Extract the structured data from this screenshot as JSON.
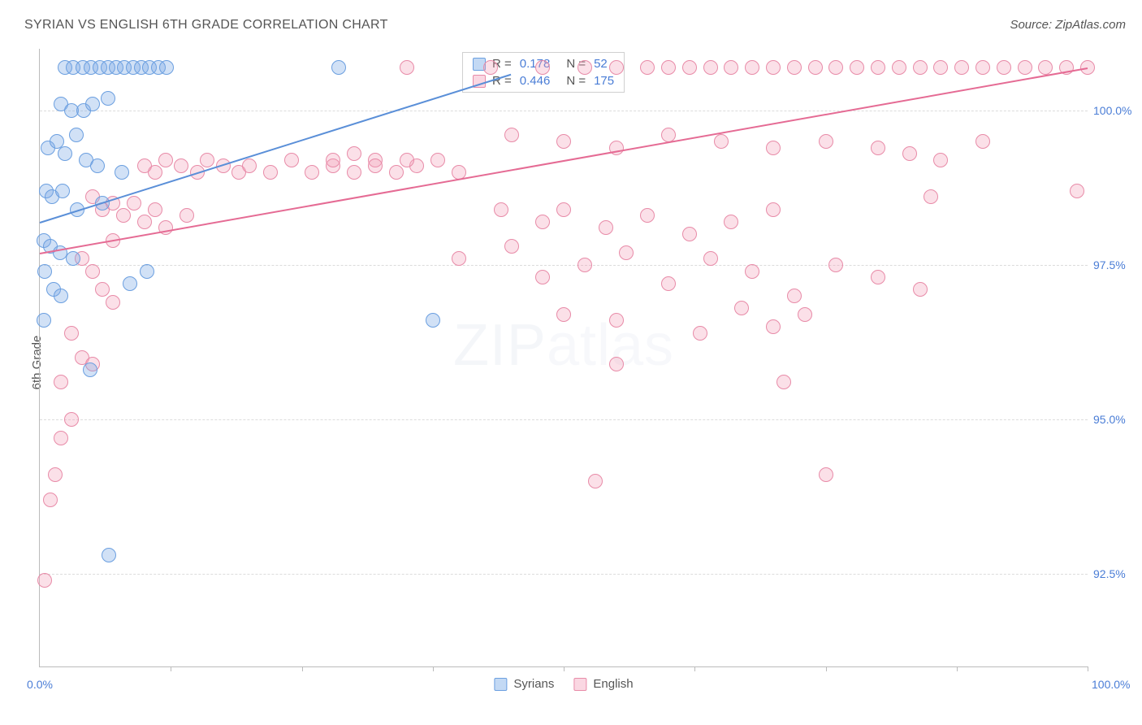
{
  "title": "SYRIAN VS ENGLISH 6TH GRADE CORRELATION CHART",
  "source": "Source: ZipAtlas.com",
  "ylabel": "6th Grade",
  "watermark_zip": "ZIP",
  "watermark_atlas": "atlas",
  "chart": {
    "type": "scatter",
    "xlim": [
      0,
      100
    ],
    "ylim": [
      91,
      101
    ],
    "y_gridlines": [
      92.5,
      95.0,
      97.5,
      100.0
    ],
    "y_tick_labels": [
      "92.5%",
      "95.0%",
      "97.5%",
      "100.0%"
    ],
    "x_gridlines": [
      0,
      12.5,
      25,
      37.5,
      50,
      62.5,
      75,
      87.5,
      100
    ],
    "x_left_label": "0.0%",
    "x_right_label": "100.0%",
    "background_color": "#ffffff",
    "grid_color": "#dcdcdc",
    "axis_color": "#bbbbbb",
    "marker_radius": 9,
    "series": [
      {
        "name": "Syrians",
        "color_fill": "rgba(122,170,230,0.35)",
        "color_stroke": "#6b9fe0",
        "R": "0.178",
        "N": "52",
        "trend": {
          "x1": 0,
          "y1": 98.2,
          "x2": 45,
          "y2": 100.6,
          "color": "#5a8fd8"
        },
        "points": [
          [
            2.4,
            100.7
          ],
          [
            3.2,
            100.7
          ],
          [
            4.1,
            100.7
          ],
          [
            4.9,
            100.7
          ],
          [
            5.7,
            100.7
          ],
          [
            6.5,
            100.7
          ],
          [
            7.3,
            100.7
          ],
          [
            8.1,
            100.7
          ],
          [
            8.9,
            100.7
          ],
          [
            9.7,
            100.7
          ],
          [
            10.5,
            100.7
          ],
          [
            11.3,
            100.7
          ],
          [
            12.1,
            100.7
          ],
          [
            28.5,
            100.7
          ],
          [
            2.0,
            100.1
          ],
          [
            3.0,
            100.0
          ],
          [
            4.2,
            100.0
          ],
          [
            5.0,
            100.1
          ],
          [
            6.5,
            100.2
          ],
          [
            0.8,
            99.4
          ],
          [
            1.6,
            99.5
          ],
          [
            2.4,
            99.3
          ],
          [
            3.5,
            99.6
          ],
          [
            4.4,
            99.2
          ],
          [
            5.5,
            99.1
          ],
          [
            7.8,
            99.0
          ],
          [
            0.6,
            98.7
          ],
          [
            1.2,
            98.6
          ],
          [
            2.2,
            98.7
          ],
          [
            3.6,
            98.4
          ],
          [
            6.0,
            98.5
          ],
          [
            0.4,
            97.9
          ],
          [
            1.0,
            97.8
          ],
          [
            1.9,
            97.7
          ],
          [
            3.2,
            97.6
          ],
          [
            0.5,
            97.4
          ],
          [
            1.3,
            97.1
          ],
          [
            2.0,
            97.0
          ],
          [
            8.6,
            97.2
          ],
          [
            10.2,
            97.4
          ],
          [
            0.4,
            96.6
          ],
          [
            37.5,
            96.6
          ],
          [
            4.8,
            95.8
          ],
          [
            6.6,
            92.8
          ]
        ]
      },
      {
        "name": "English",
        "color_fill": "rgba(242,160,185,0.32)",
        "color_stroke": "#e88ba8",
        "R": "0.446",
        "N": "175",
        "trend": {
          "x1": 0,
          "y1": 97.7,
          "x2": 100,
          "y2": 100.7,
          "color": "#e56b94"
        },
        "points": [
          [
            35,
            100.7
          ],
          [
            43,
            100.7
          ],
          [
            48,
            100.7
          ],
          [
            52,
            100.7
          ],
          [
            55,
            100.7
          ],
          [
            58,
            100.7
          ],
          [
            60,
            100.7
          ],
          [
            62,
            100.7
          ],
          [
            64,
            100.7
          ],
          [
            66,
            100.7
          ],
          [
            68,
            100.7
          ],
          [
            70,
            100.7
          ],
          [
            72,
            100.7
          ],
          [
            74,
            100.7
          ],
          [
            76,
            100.7
          ],
          [
            78,
            100.7
          ],
          [
            80,
            100.7
          ],
          [
            82,
            100.7
          ],
          [
            84,
            100.7
          ],
          [
            86,
            100.7
          ],
          [
            88,
            100.7
          ],
          [
            90,
            100.7
          ],
          [
            92,
            100.7
          ],
          [
            94,
            100.7
          ],
          [
            96,
            100.7
          ],
          [
            98,
            100.7
          ],
          [
            100,
            100.7
          ],
          [
            10,
            99.1
          ],
          [
            11,
            99.0
          ],
          [
            12,
            99.2
          ],
          [
            13.5,
            99.1
          ],
          [
            15,
            99.0
          ],
          [
            16,
            99.2
          ],
          [
            17.5,
            99.1
          ],
          [
            19,
            99.0
          ],
          [
            20,
            99.1
          ],
          [
            22,
            99.0
          ],
          [
            24,
            99.2
          ],
          [
            26,
            99.0
          ],
          [
            28,
            99.1
          ],
          [
            30,
            99.0
          ],
          [
            32,
            99.2
          ],
          [
            34,
            99.0
          ],
          [
            36,
            99.1
          ],
          [
            38,
            99.2
          ],
          [
            40,
            99.0
          ],
          [
            28,
            99.2
          ],
          [
            30,
            99.3
          ],
          [
            32,
            99.1
          ],
          [
            35,
            99.2
          ],
          [
            45,
            99.6
          ],
          [
            50,
            99.5
          ],
          [
            55,
            99.4
          ],
          [
            60,
            99.6
          ],
          [
            65,
            99.5
          ],
          [
            70,
            99.4
          ],
          [
            75,
            99.5
          ],
          [
            80,
            99.4
          ],
          [
            83,
            99.3
          ],
          [
            86,
            99.2
          ],
          [
            90,
            99.5
          ],
          [
            5,
            98.6
          ],
          [
            6,
            98.4
          ],
          [
            7,
            98.5
          ],
          [
            8,
            98.3
          ],
          [
            9,
            98.5
          ],
          [
            10,
            98.2
          ],
          [
            11,
            98.4
          ],
          [
            12,
            98.1
          ],
          [
            14,
            98.3
          ],
          [
            7,
            97.9
          ],
          [
            44,
            98.4
          ],
          [
            48,
            98.2
          ],
          [
            50,
            98.4
          ],
          [
            54,
            98.1
          ],
          [
            58,
            98.3
          ],
          [
            62,
            98.0
          ],
          [
            66,
            98.2
          ],
          [
            70,
            98.4
          ],
          [
            85,
            98.6
          ],
          [
            99,
            98.7
          ],
          [
            4,
            97.6
          ],
          [
            5,
            97.4
          ],
          [
            6,
            97.1
          ],
          [
            7,
            96.9
          ],
          [
            40,
            97.6
          ],
          [
            45,
            97.8
          ],
          [
            48,
            97.3
          ],
          [
            52,
            97.5
          ],
          [
            56,
            97.7
          ],
          [
            60,
            97.2
          ],
          [
            64,
            97.6
          ],
          [
            68,
            97.4
          ],
          [
            72,
            97.0
          ],
          [
            76,
            97.5
          ],
          [
            80,
            97.3
          ],
          [
            84,
            97.1
          ],
          [
            3,
            96.4
          ],
          [
            4,
            96.0
          ],
          [
            5,
            95.9
          ],
          [
            50,
            96.7
          ],
          [
            55,
            96.6
          ],
          [
            63,
            96.4
          ],
          [
            70,
            96.5
          ],
          [
            73,
            96.7
          ],
          [
            2,
            95.6
          ],
          [
            3,
            95.0
          ],
          [
            55,
            95.9
          ],
          [
            67,
            96.8
          ],
          [
            71,
            95.6
          ],
          [
            2,
            94.7
          ],
          [
            1.5,
            94.1
          ],
          [
            53,
            94.0
          ],
          [
            75,
            94.1
          ],
          [
            1,
            93.7
          ],
          [
            0.5,
            92.4
          ]
        ]
      }
    ],
    "legend_series_label_1": "Syrians",
    "legend_series_label_2": "English",
    "legend_R_prefix": "R =",
    "legend_N_prefix": "N ="
  }
}
